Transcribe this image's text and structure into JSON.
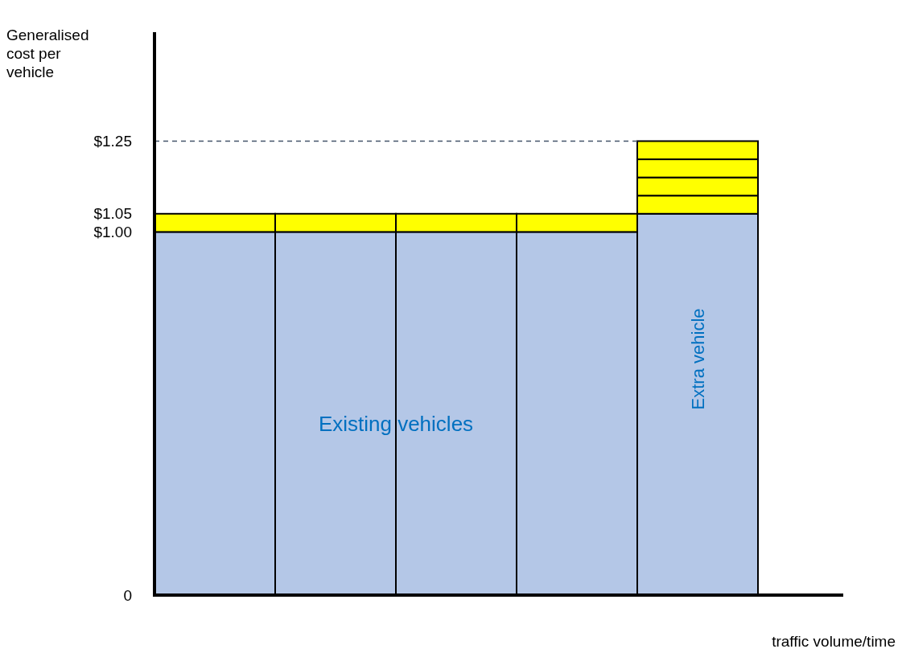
{
  "chart_data": {
    "type": "bar",
    "stacked": true,
    "categories": [
      null,
      null,
      null,
      null,
      null
    ],
    "series": [
      {
        "color": "#b4c7e7",
        "values": [
          1.0,
          1.0,
          1.0,
          1.0,
          1.05
        ]
      },
      {
        "color": "#ffff00",
        "values": [
          0.05,
          0.05,
          0.05,
          0.05,
          0.05
        ]
      },
      {
        "color": "#ffff00",
        "values": [
          null,
          null,
          null,
          null,
          0.05
        ]
      },
      {
        "color": "#ffff00",
        "values": [
          null,
          null,
          null,
          null,
          0.05
        ]
      },
      {
        "color": "#ffff00",
        "values": [
          null,
          null,
          null,
          null,
          0.05
        ]
      }
    ],
    "ylim": [
      0,
      1.55
    ],
    "yticks": [
      {
        "value": 0,
        "label": "0"
      },
      {
        "value": 1,
        "label": "$1.00"
      },
      {
        "value": 1.05,
        "label": "$1.05"
      },
      {
        "value": 1.25,
        "label": "$1.25"
      }
    ],
    "ylabel": "Generalised cost per vehicle",
    "xlabel": "traffic volume/time",
    "ref_lines": [
      {
        "axis": "y",
        "value": 1.25,
        "line_style": "dashed",
        "color": "#44546a"
      }
    ],
    "annotations": [
      "Existing vehicles",
      "Extra vehicle"
    ],
    "grid": false
  }
}
